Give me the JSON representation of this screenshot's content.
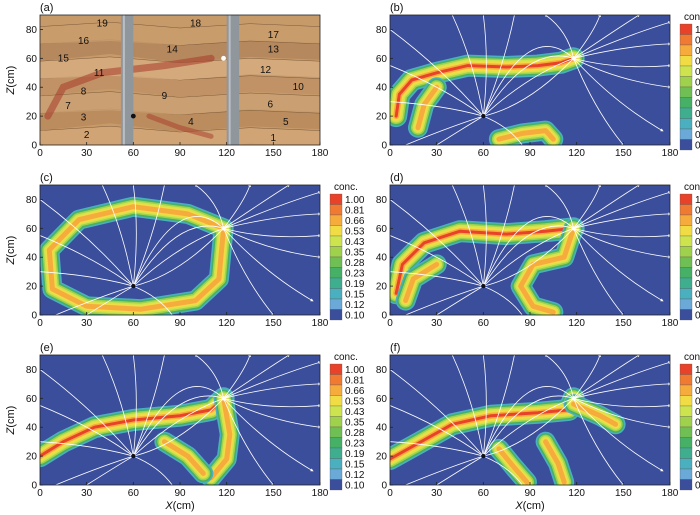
{
  "figure": {
    "xlabel_var": "X",
    "xlabel_unit": "(cm)",
    "ylabel_var": "Z",
    "ylabel_unit": "(cm)",
    "x_ticks": [
      "0",
      "30",
      "60",
      "90",
      "120",
      "150",
      "180"
    ],
    "y_ticks": [
      "0",
      "20",
      "40",
      "60",
      "80"
    ],
    "colorbar_title": "conc.",
    "colorbar_levels": [
      "1.00",
      "0.81",
      "0.66",
      "0.53",
      "0.43",
      "0.35",
      "0.28",
      "0.23",
      "0.19",
      "0.15",
      "0.12",
      "0.10"
    ],
    "colorbar_colors": [
      "#e8432a",
      "#f07a32",
      "#f6ac3d",
      "#f2dc45",
      "#cde44e",
      "#9fd14c",
      "#6fbf55",
      "#45b066",
      "#3fae8e",
      "#4ab0c0",
      "#6aa9d8",
      "#3b4e9c"
    ],
    "background_color": "#3b4e9c",
    "panel_a": {
      "label": "(a)",
      "layer_numbers": [
        "1",
        "2",
        "3",
        "4",
        "5",
        "6",
        "7",
        "8",
        "9",
        "10",
        "11",
        "12",
        "13",
        "14",
        "15",
        "16",
        "17",
        "18",
        "19"
      ]
    },
    "panels": [
      {
        "id": "b",
        "label": "(b)"
      },
      {
        "id": "c",
        "label": "(c)"
      },
      {
        "id": "d",
        "label": "(d)"
      },
      {
        "id": "e",
        "label": "(e)"
      },
      {
        "id": "f",
        "label": "(f)"
      }
    ]
  },
  "chart_data": [
    {
      "panel": "a",
      "type": "other",
      "description_source": "photograph of layered sand tank",
      "x_range": [
        0,
        180
      ],
      "z_range": [
        0,
        90
      ],
      "point_markers": [
        {
          "name": "black dot",
          "x": 60,
          "z": 20
        },
        {
          "name": "white dot",
          "x": 118,
          "z": 60
        }
      ]
    },
    {
      "panel": "b",
      "type": "heatmap",
      "variable": "conc.",
      "x_range": [
        0,
        180
      ],
      "z_range": [
        0,
        90
      ],
      "source_point": [
        118,
        60
      ],
      "sink_point": [
        60,
        20
      ]
    },
    {
      "panel": "c",
      "type": "heatmap",
      "variable": "conc.",
      "x_range": [
        0,
        180
      ],
      "z_range": [
        0,
        90
      ],
      "source_point": [
        118,
        60
      ],
      "sink_point": [
        60,
        20
      ]
    },
    {
      "panel": "d",
      "type": "heatmap",
      "variable": "conc.",
      "x_range": [
        0,
        180
      ],
      "z_range": [
        0,
        90
      ],
      "source_point": [
        118,
        60
      ],
      "sink_point": [
        60,
        20
      ]
    },
    {
      "panel": "e",
      "type": "heatmap",
      "variable": "conc.",
      "x_range": [
        0,
        180
      ],
      "z_range": [
        0,
        90
      ],
      "source_point": [
        118,
        60
      ],
      "sink_point": [
        60,
        20
      ]
    },
    {
      "panel": "f",
      "type": "heatmap",
      "variable": "conc.",
      "x_range": [
        0,
        180
      ],
      "z_range": [
        0,
        90
      ],
      "source_point": [
        118,
        60
      ],
      "sink_point": [
        60,
        20
      ]
    }
  ]
}
